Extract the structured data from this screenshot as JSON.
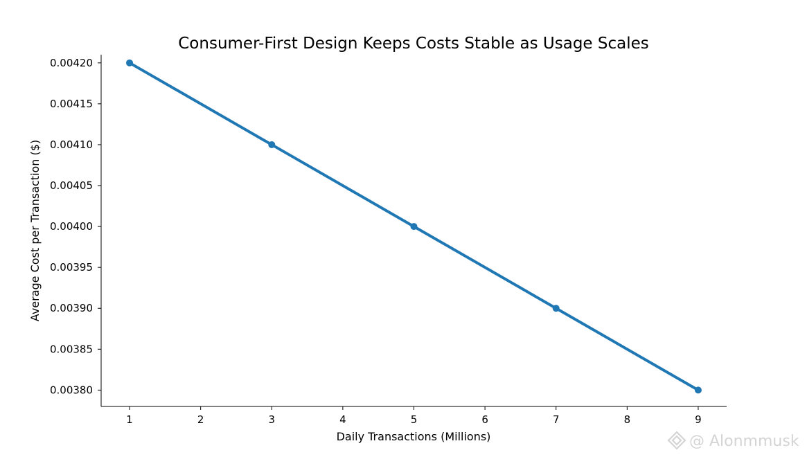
{
  "chart_data": {
    "type": "line",
    "title": "Consumer-First Design Keeps Costs Stable as Usage Scales",
    "xlabel": "Daily Transactions (Millions)",
    "ylabel": "Average Cost per Transaction ($)",
    "x": [
      1,
      3,
      5,
      7,
      9
    ],
    "series": [
      {
        "name": "Average Cost per Transaction",
        "values": [
          0.0042,
          0.0041,
          0.004,
          0.0039,
          0.0038
        ],
        "color": "#1f77b4"
      }
    ],
    "xlim": [
      0.6,
      9.4
    ],
    "ylim": [
      0.00378,
      0.00421
    ],
    "xticks": [
      1,
      2,
      3,
      4,
      5,
      6,
      7,
      8,
      9
    ],
    "xtick_labels": [
      "1",
      "2",
      "3",
      "4",
      "5",
      "6",
      "7",
      "8",
      "9"
    ],
    "yticks": [
      0.0038,
      0.00385,
      0.0039,
      0.00395,
      0.004,
      0.00405,
      0.0041,
      0.00415,
      0.0042
    ],
    "ytick_labels": [
      "0.00380",
      "0.00385",
      "0.00390",
      "0.00395",
      "0.00400",
      "0.00405",
      "0.00410",
      "0.00415",
      "0.00420"
    ],
    "grid": false,
    "legend": "none"
  },
  "watermark": {
    "text": "@ Alonmmusk",
    "icon": "diamond-logo-icon"
  }
}
